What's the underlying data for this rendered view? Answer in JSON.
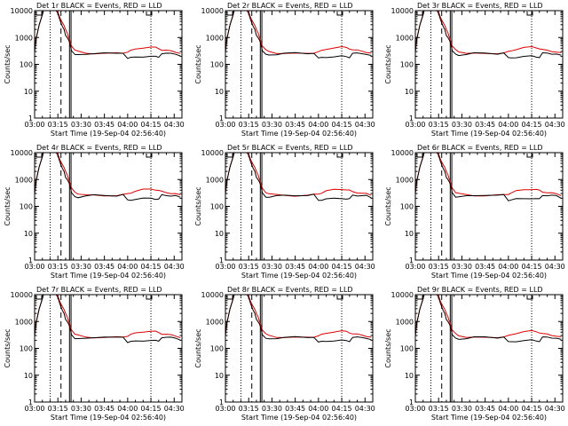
{
  "chart_data": {
    "type": "line",
    "panels": [
      {
        "title": "Det 1r BLACK = Events, RED = LLD",
        "variant": 1
      },
      {
        "title": "Det 2r BLACK = Events, RED = LLD",
        "variant": 2
      },
      {
        "title": "Det 3r BLACK = Events, RED = LLD",
        "variant": 3
      },
      {
        "title": "Det 4r BLACK = Events, RED = LLD",
        "variant": 4
      },
      {
        "title": "Det 5r BLACK = Events, RED = LLD",
        "variant": 5
      },
      {
        "title": "Det 6r BLACK = Events, RED = LLD",
        "variant": 6
      },
      {
        "title": "Det 7r BLACK = Events, RED = LLD",
        "variant": 7
      },
      {
        "title": "Det 8r BLACK = Events, RED = LLD",
        "variant": 8
      },
      {
        "title": "Det 9r BLACK = Events, RED = LLD",
        "variant": 9
      }
    ],
    "xlabel": "Start Time (19-Sep-04 02:56:40)",
    "ylabel": "Counts/sec",
    "x_tick_labels": [
      "03:00",
      "03:15",
      "03:30",
      "03:45",
      "04:00",
      "04:15",
      "04:30"
    ],
    "x_ticks_min": [
      0,
      15,
      30,
      45,
      60,
      75,
      90
    ],
    "xlim_min": [
      0,
      95
    ],
    "y_tick_labels": [
      "1",
      "10",
      "100",
      "1000",
      "10000"
    ],
    "y_ticks": [
      1,
      10,
      100,
      1000,
      10000
    ],
    "ylim": [
      1,
      10000
    ],
    "y_scale": "log",
    "vlines": [
      {
        "x_min": 10,
        "style": "dotted"
      },
      {
        "x_min": 17,
        "style": "dashed"
      },
      {
        "x_min": 22.5,
        "style": "solid"
      },
      {
        "x_min": 23.5,
        "style": "solid"
      },
      {
        "x_min": 75,
        "style": "dotted"
      }
    ],
    "series": [
      {
        "name": "Events",
        "color": "#000000",
        "x_min": [
          0,
          1,
          3,
          5,
          6,
          8,
          11,
          13,
          15,
          16,
          17,
          18,
          19,
          20,
          21,
          22,
          22.8,
          23.8,
          26,
          28,
          33,
          38,
          45,
          53,
          57,
          60,
          62,
          65,
          70,
          75,
          78,
          80,
          82,
          85,
          88,
          91,
          94
        ],
        "y": [
          300,
          900,
          3000,
          7000,
          12000,
          12000,
          12000,
          12000,
          8000,
          5000,
          3500,
          2500,
          2000,
          1200,
          1000,
          800,
          600,
          320,
          230,
          220,
          240,
          260,
          260,
          250,
          270,
          170,
          175,
          185,
          195,
          200,
          190,
          185,
          260,
          255,
          250,
          245,
          210
        ]
      },
      {
        "name": "LLD",
        "color": "#dd0000",
        "x_min": [
          0,
          1,
          3,
          5,
          6,
          8,
          11,
          13,
          15,
          16,
          17,
          18,
          19,
          20,
          21,
          22,
          22.8,
          23.8,
          26,
          28,
          33,
          38,
          45,
          53,
          57,
          60,
          62,
          65,
          70,
          75,
          78,
          80,
          82,
          85,
          88,
          91,
          94
        ],
        "y": [
          300,
          900,
          3000,
          7000,
          12000,
          12000,
          12000,
          12000,
          9000,
          6000,
          4500,
          3500,
          2800,
          2000,
          1500,
          1000,
          750,
          480,
          340,
          300,
          265,
          255,
          250,
          260,
          270,
          290,
          320,
          370,
          420,
          440,
          420,
          390,
          350,
          330,
          310,
          290,
          260
        ]
      }
    ],
    "legend": "top"
  }
}
